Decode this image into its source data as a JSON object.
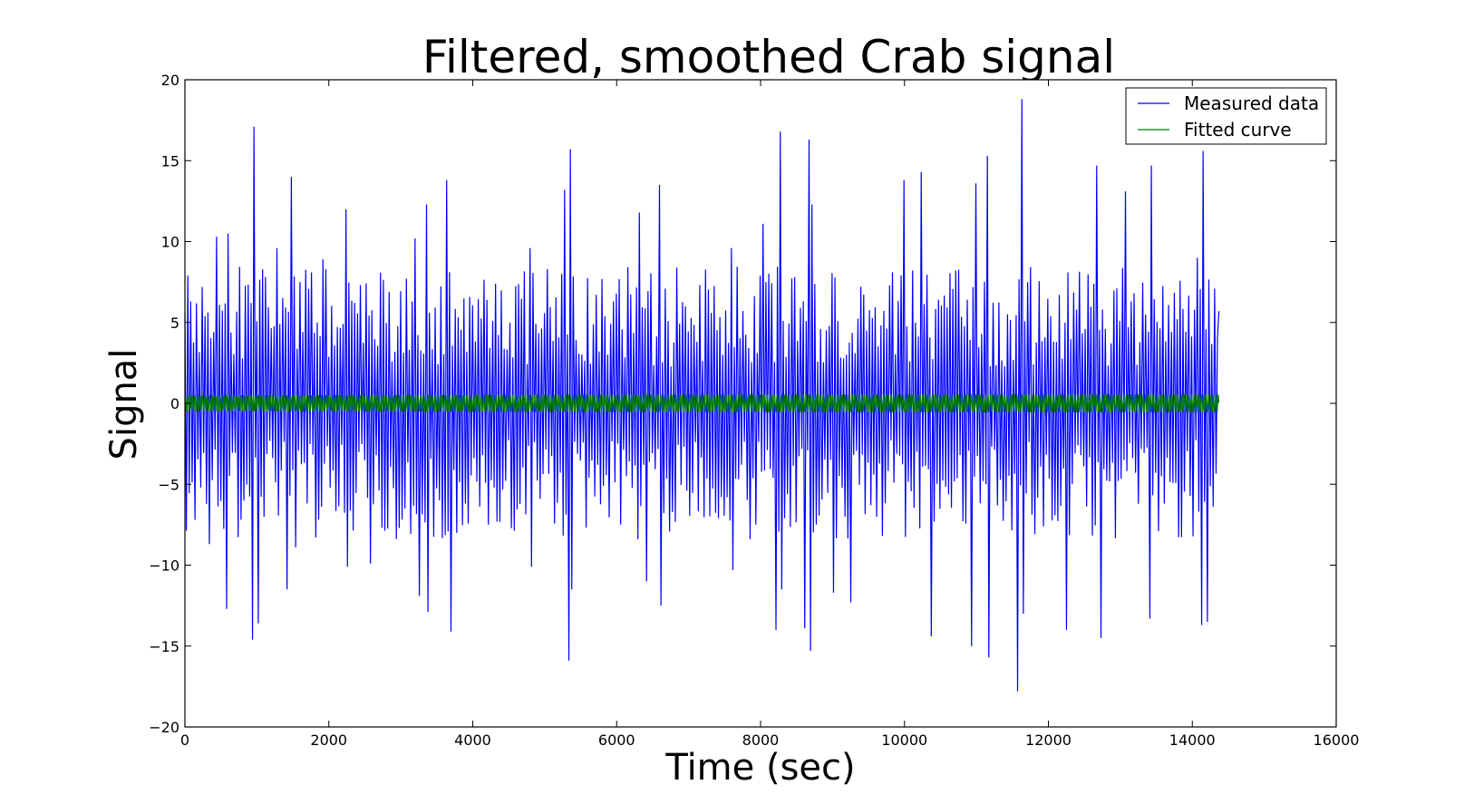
{
  "chart_data": {
    "type": "line",
    "title": "Filtered, smoothed Crab signal",
    "xlabel": "Time (sec)",
    "ylabel": "Signal",
    "xlim": [
      0,
      16000
    ],
    "ylim": [
      -20,
      20
    ],
    "xticks": [
      0,
      2000,
      4000,
      6000,
      8000,
      10000,
      12000,
      14000,
      16000
    ],
    "yticks": [
      -20,
      -15,
      -10,
      -5,
      0,
      5,
      10,
      15,
      20
    ],
    "xtick_labels": [
      "0",
      "2000",
      "4000",
      "6000",
      "8000",
      "10000",
      "12000",
      "14000",
      "16000"
    ],
    "ytick_labels": [
      "−20",
      "−15",
      "−10",
      "−5",
      "0",
      "5",
      "10",
      "15",
      "20"
    ],
    "grid": false,
    "legend_position": "top-right",
    "series": [
      {
        "name": "Measured data",
        "color": "#0000ff",
        "x_start": 0,
        "x_end": 14370,
        "num_points": 720,
        "peaks": [
          {
            "x": 20,
            "y": 7.9
          },
          {
            "x": 110,
            "y": -7.2
          },
          {
            "x": 220,
            "y": 7.2
          },
          {
            "x": 320,
            "y": -8.7
          },
          {
            "x": 440,
            "y": 10.3
          },
          {
            "x": 560,
            "y": -12.7
          },
          {
            "x": 600,
            "y": 10.5
          },
          {
            "x": 780,
            "y": -7.2
          },
          {
            "x": 920,
            "y": -14.6
          },
          {
            "x": 960,
            "y": 17.1
          },
          {
            "x": 1000,
            "y": -13.6
          },
          {
            "x": 1280,
            "y": 9.6
          },
          {
            "x": 1410,
            "y": -11.5
          },
          {
            "x": 1450,
            "y": 14.0
          },
          {
            "x": 1530,
            "y": -8.9
          },
          {
            "x": 1910,
            "y": 8.9
          },
          {
            "x": 2210,
            "y": 12.0
          },
          {
            "x": 2250,
            "y": -10.1
          },
          {
            "x": 2570,
            "y": -9.9
          },
          {
            "x": 3200,
            "y": 10.2
          },
          {
            "x": 3240,
            "y": -11.9
          },
          {
            "x": 3340,
            "y": 12.3
          },
          {
            "x": 3380,
            "y": -12.9
          },
          {
            "x": 3640,
            "y": 13.8
          },
          {
            "x": 3680,
            "y": -14.1
          },
          {
            "x": 4780,
            "y": 9.6
          },
          {
            "x": 4820,
            "y": -10.1
          },
          {
            "x": 5280,
            "y": 13.2
          },
          {
            "x": 5310,
            "y": -15.9
          },
          {
            "x": 5340,
            "y": 15.7
          },
          {
            "x": 5370,
            "y": -11.5
          },
          {
            "x": 5960,
            "y": 6.3
          },
          {
            "x": 6290,
            "y": 11.8
          },
          {
            "x": 6390,
            "y": -11.0
          },
          {
            "x": 6580,
            "y": 13.5
          },
          {
            "x": 6610,
            "y": -12.5
          },
          {
            "x": 7580,
            "y": 9.6
          },
          {
            "x": 7610,
            "y": -10.3
          },
          {
            "x": 8020,
            "y": 11.1
          },
          {
            "x": 8220,
            "y": -14.0
          },
          {
            "x": 8260,
            "y": 16.8
          },
          {
            "x": 8290,
            "y": -11.5
          },
          {
            "x": 8620,
            "y": -13.9
          },
          {
            "x": 8650,
            "y": 16.3
          },
          {
            "x": 8680,
            "y": -15.3
          },
          {
            "x": 8700,
            "y": 12.3
          },
          {
            "x": 9000,
            "y": -11.7
          },
          {
            "x": 9250,
            "y": -12.3
          },
          {
            "x": 10000,
            "y": 13.8
          },
          {
            "x": 10240,
            "y": 14.3
          },
          {
            "x": 10380,
            "y": -14.4
          },
          {
            "x": 10930,
            "y": -15.0
          },
          {
            "x": 10990,
            "y": 13.6
          },
          {
            "x": 11140,
            "y": 15.3
          },
          {
            "x": 11170,
            "y": -15.7
          },
          {
            "x": 11580,
            "y": -17.8
          },
          {
            "x": 11620,
            "y": 18.8
          },
          {
            "x": 11660,
            "y": -13.0
          },
          {
            "x": 12250,
            "y": -14.0
          },
          {
            "x": 12680,
            "y": 14.7
          },
          {
            "x": 12710,
            "y": -14.5
          },
          {
            "x": 13080,
            "y": 13.1
          },
          {
            "x": 13400,
            "y": -13.3
          },
          {
            "x": 13420,
            "y": 14.7
          },
          {
            "x": 14070,
            "y": 9.0
          },
          {
            "x": 14110,
            "y": -13.7
          },
          {
            "x": 14150,
            "y": 15.6
          },
          {
            "x": 14190,
            "y": -13.5
          },
          {
            "x": 14370,
            "y": 5.7
          }
        ],
        "typical_amplitude": 6.5
      },
      {
        "name": "Fitted curve",
        "color": "#008000",
        "x_start": 0,
        "x_end": 14370,
        "amplitude": 0.55,
        "period": 33.7
      }
    ]
  }
}
